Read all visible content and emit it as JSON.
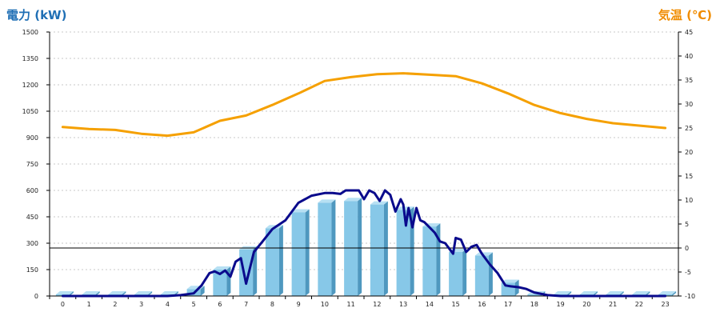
{
  "chart_data": {
    "type": "bar+line",
    "title": "",
    "left_axis_title": "電力 (kW)",
    "right_axis_title": "気温 (℃)",
    "xlabel": "",
    "x_categories": [
      "0",
      "1",
      "2",
      "3",
      "4",
      "5",
      "6",
      "7",
      "8",
      "9",
      "10",
      "11",
      "12",
      "13",
      "14",
      "15",
      "16",
      "17",
      "18",
      "19",
      "20",
      "21",
      "22",
      "23"
    ],
    "left_ylim": [
      0,
      1500
    ],
    "left_yticks": [
      0,
      150,
      300,
      450,
      600,
      750,
      900,
      1050,
      1200,
      1350,
      1500
    ],
    "right_ylim": [
      -10,
      45
    ],
    "right_yticks": [
      -10,
      -5,
      0,
      5,
      10,
      15,
      20,
      25,
      30,
      35,
      40,
      45
    ],
    "grid": true,
    "reference_line": {
      "axis": "right",
      "value": 0
    },
    "series": [
      {
        "kind": "bar",
        "axis": "left",
        "color": "#87c8e8",
        "values": [
          0,
          0,
          0,
          0,
          0,
          40,
          150,
          265,
          385,
          475,
          530,
          540,
          520,
          490,
          395,
          250,
          230,
          75,
          5,
          0,
          0,
          0,
          0,
          0
        ]
      },
      {
        "kind": "line",
        "axis": "left",
        "color": "#0a0a8c",
        "x": [
          0,
          1,
          2,
          3,
          4,
          4.5,
          5,
          5.3,
          5.6,
          5.8,
          6,
          6.2,
          6.4,
          6.6,
          6.8,
          7,
          7.3,
          7.6,
          8,
          8.5,
          9,
          9.5,
          10,
          10.3,
          10.6,
          10.8,
          11,
          11.3,
          11.5,
          11.7,
          11.9,
          12.1,
          12.3,
          12.5,
          12.7,
          12.9,
          13.0,
          13.1,
          13.2,
          13.35,
          13.5,
          13.65,
          13.8,
          14.0,
          14.2,
          14.4,
          14.6,
          14.8,
          14.9,
          15.0,
          15.2,
          15.4,
          15.6,
          15.8,
          16.0,
          16.3,
          16.6,
          16.9,
          17.1,
          17.4,
          17.7,
          18.0,
          18.5,
          19,
          20,
          21,
          22,
          23
        ],
        "values": [
          0,
          0,
          0,
          0,
          0,
          5,
          15,
          60,
          130,
          140,
          125,
          145,
          110,
          195,
          215,
          70,
          250,
          305,
          380,
          430,
          530,
          570,
          585,
          585,
          580,
          600,
          600,
          600,
          550,
          600,
          585,
          540,
          600,
          575,
          480,
          550,
          520,
          400,
          500,
          390,
          500,
          430,
          420,
          390,
          360,
          310,
          300,
          260,
          240,
          330,
          320,
          250,
          280,
          290,
          240,
          180,
          130,
          60,
          55,
          50,
          40,
          20,
          5,
          0,
          0,
          0,
          0,
          0
        ]
      },
      {
        "kind": "line",
        "axis": "right",
        "color": "#f5a000",
        "values": [
          25.2,
          24.8,
          24.6,
          23.8,
          23.4,
          24.1,
          26.5,
          27.6,
          29.8,
          32.2,
          34.8,
          35.6,
          36.2,
          36.4,
          36.1,
          35.8,
          34.3,
          32.2,
          29.8,
          28.1,
          26.9,
          26.0,
          25.5,
          25.0
        ]
      }
    ]
  }
}
